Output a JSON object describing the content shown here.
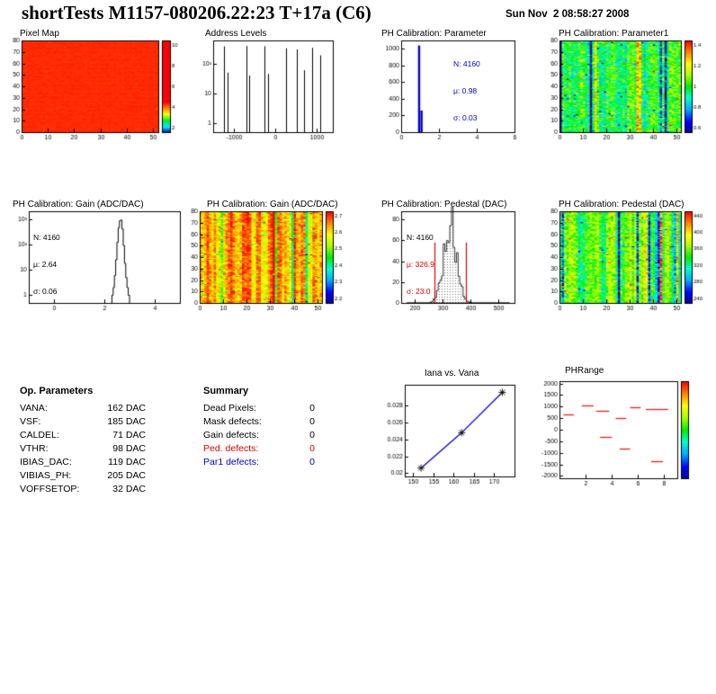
{
  "header": {
    "title": "shortTests M1157-080206.22:23 T+17a (C6)",
    "date": "Sun Nov  2 08:58:27 2008"
  },
  "op_parameters": {
    "title": "Op. Parameters",
    "rows": [
      {
        "label": "VANA:",
        "value": "162 DAC"
      },
      {
        "label": "VSF:",
        "value": "185 DAC"
      },
      {
        "label": "CALDEL:",
        "value": "71 DAC"
      },
      {
        "label": "VTHR:",
        "value": "98 DAC"
      },
      {
        "label": "IBIAS_DAC:",
        "value": "119 DAC"
      },
      {
        "label": "VIBIAS_PH:",
        "value": "205 DAC"
      },
      {
        "label": "VOFFSETOP:",
        "value": "32 DAC"
      }
    ]
  },
  "summary": {
    "title": "Summary",
    "rows": [
      {
        "label": "Dead Pixels:",
        "value": "0",
        "color": "#000000"
      },
      {
        "label": "Mask defects:",
        "value": "0",
        "color": "#000000"
      },
      {
        "label": "Gain defects:",
        "value": "0",
        "color": "#000000"
      },
      {
        "label": "Ped. defects:",
        "value": "0",
        "color": "#dd0000"
      },
      {
        "label": "Par1 defects:",
        "value": "0",
        "color": "#0000cc"
      }
    ]
  },
  "chart_data": [
    {
      "id": "pixel_map",
      "type": "heatmap",
      "title": "Pixel Map",
      "xlim": [
        0,
        52
      ],
      "ylim": [
        0,
        80
      ],
      "x_ticks": [
        0,
        10,
        20,
        30,
        40,
        50
      ],
      "y_ticks": [
        0,
        10,
        20,
        30,
        40,
        50,
        60,
        70,
        80
      ],
      "base": 0.96,
      "streak": 0,
      "noise": 0.02,
      "outlier": 0,
      "seed": 11,
      "colorbar": {
        "stops": [
          [
            0,
            "#0000bb"
          ],
          [
            0.06,
            "#00eaff"
          ],
          [
            0.13,
            "#00ee33"
          ],
          [
            0.2,
            "#ffff00"
          ],
          [
            0.27,
            "#ff7700"
          ],
          [
            0.33,
            "#ff0000"
          ],
          [
            1,
            "#ff0000"
          ]
        ],
        "labels": [
          "10",
          "8",
          "6",
          "4",
          "2"
        ]
      }
    },
    {
      "id": "address_levels",
      "type": "log_spikes",
      "title": "Address Levels",
      "xlim": [
        -1500,
        1400
      ],
      "x_ticks": [
        -1000,
        0,
        1000
      ],
      "ylog": [
        0.5,
        600
      ],
      "y_ticks": [
        {
          "label": "10²",
          "v": 100
        },
        {
          "label": "10",
          "v": 10
        },
        {
          "label": "1",
          "v": 1
        }
      ],
      "spikes": [
        [
          -1230,
          380
        ],
        [
          -1150,
          50
        ],
        [
          -700,
          390
        ],
        [
          -620,
          40
        ],
        [
          -250,
          385
        ],
        [
          -170,
          45
        ],
        [
          265,
          330
        ],
        [
          520,
          300
        ],
        [
          700,
          60
        ],
        [
          900,
          340
        ],
        [
          1100,
          190
        ]
      ]
    },
    {
      "id": "ph_parameter",
      "type": "spike_hist",
      "title": "PH Calibration: Parameter",
      "xlim": [
        0,
        6
      ],
      "x_ticks": [
        0,
        2,
        4,
        6
      ],
      "ylim": [
        0,
        1100
      ],
      "y_ticks": [
        0,
        200,
        400,
        600,
        800,
        1000
      ],
      "color": "#0000cc",
      "spikes": [
        [
          0.95,
          1040
        ],
        [
          1.08,
          260
        ]
      ],
      "stats": {
        "color": "#0000cc",
        "lines": [
          "N: 4160",
          "μ: 0.98",
          "σ: 0.03"
        ]
      }
    },
    {
      "id": "parameter1_map",
      "type": "heatmap",
      "title": "PH Calibration: Parameter1",
      "xlim": [
        0,
        52
      ],
      "ylim": [
        0,
        80
      ],
      "x_ticks": [
        0,
        10,
        20,
        30,
        40,
        50
      ],
      "y_ticks": [
        0,
        10,
        20,
        30,
        40,
        50,
        60,
        70,
        80
      ],
      "base": 0.48,
      "streak": 0.09,
      "noise": 0.3,
      "outlier": 0.07,
      "seed": 7,
      "colorbar": {
        "stops": "rainbow",
        "labels": [
          "1.4",
          "1.2",
          "1",
          "0.8",
          "0.6"
        ]
      }
    },
    {
      "id": "gain_hist",
      "type": "log_hist",
      "title": "PH Calibration: Gain (ADC/DAC)",
      "xlim": [
        -1,
        5
      ],
      "x_ticks": [
        0,
        2,
        4
      ],
      "ylog": [
        0.5,
        2000
      ],
      "y_ticks": [
        {
          "label": "10³",
          "v": 1000
        },
        {
          "label": "10²",
          "v": 100
        },
        {
          "label": "10",
          "v": 10
        },
        {
          "label": "1",
          "v": 1
        }
      ],
      "bins": {
        "x0": 2.3,
        "w": 0.05,
        "counts": [
          1,
          2,
          6,
          25,
          120,
          450,
          850,
          900,
          400,
          90,
          18,
          5,
          2,
          1
        ]
      },
      "stats": {
        "color": "#000000",
        "lines": [
          "N: 4160",
          "μ: 2.64",
          "σ: 0.06"
        ]
      }
    },
    {
      "id": "gain_map",
      "type": "heatmap",
      "title": "PH Calibration: Gain (ADC/DAC)",
      "xlim": [
        0,
        52
      ],
      "ylim": [
        0,
        80
      ],
      "x_ticks": [
        0,
        10,
        20,
        30,
        40,
        50
      ],
      "y_ticks": [
        0,
        10,
        20,
        30,
        40,
        50,
        60,
        70,
        80
      ],
      "base": 0.84,
      "streak": 0.13,
      "noise": 0.2,
      "outlier": 0.06,
      "seed": 21,
      "colorbar": {
        "stops": "rainbow",
        "labels": [
          "2.7",
          "2.6",
          "2.5",
          "2.4",
          "2.3",
          "2.2"
        ]
      }
    },
    {
      "id": "pedestal_hist",
      "type": "gauss_hist",
      "title": "PH Calibration: Pedestal (DAC)",
      "xlim": [
        150,
        560
      ],
      "x_ticks": [
        200,
        300,
        400,
        500
      ],
      "ylim": [
        0,
        88
      ],
      "y_ticks": [
        0,
        20,
        40,
        60,
        80
      ],
      "mu": 326.9,
      "sigma": 23.0,
      "peak": 76,
      "seed": 5,
      "red_lines": {
        "x": [
          270,
          385
        ],
        "h": 58,
        "color": "#dd0000"
      },
      "stats": {
        "lines": [
          "N: 4160",
          "μ: 326.9",
          "σ: 23.0"
        ],
        "colors": [
          "#000000",
          "#dd0000",
          "#dd0000"
        ]
      }
    },
    {
      "id": "pedestal_map",
      "type": "heatmap",
      "title": "PH Calibration: Pedestal (DAC)",
      "xlim": [
        0,
        52
      ],
      "ylim": [
        0,
        80
      ],
      "x_ticks": [
        0,
        10,
        20,
        30,
        40,
        50
      ],
      "y_ticks": [
        0,
        10,
        20,
        30,
        40,
        50,
        60,
        70,
        80
      ],
      "base": 0.52,
      "streak": 0.15,
      "noise": 0.27,
      "outlier": 0.06,
      "seed": 33,
      "colorbar": {
        "stops": "rainbow",
        "labels": [
          "440",
          "400",
          "360",
          "320",
          "280",
          "240"
        ]
      }
    },
    {
      "id": "iana_vana",
      "type": "line",
      "title": "Iana vs. Vana",
      "xlim": [
        148,
        175
      ],
      "x_ticks": [
        150,
        155,
        160,
        165,
        170
      ],
      "ylim": [
        0.0196,
        0.0305
      ],
      "y_ticks": [
        {
          "label": "0.028",
          "v": 0.028
        },
        {
          "label": "0.026",
          "v": 0.026
        },
        {
          "label": "0.024",
          "v": 0.024
        },
        {
          "label": "0.022",
          "v": 0.022
        },
        {
          "label": "0.02",
          "v": 0.02
        }
      ],
      "points": [
        [
          152,
          0.0206
        ],
        [
          162,
          0.0248
        ],
        [
          172,
          0.0296
        ]
      ],
      "line_color": "#0000cc",
      "marker_color": "#111111"
    },
    {
      "id": "phrange",
      "type": "segments",
      "title": "PHRange",
      "xlim": [
        0,
        9
      ],
      "x_ticks": [
        2,
        4,
        6,
        8
      ],
      "ylim": [
        -2100,
        2100
      ],
      "y_ticks": [
        {
          "label": "2000",
          "v": 2000
        },
        {
          "label": "1500",
          "v": 1500
        },
        {
          "label": "1000",
          "v": 1000
        },
        {
          "label": "500",
          "v": 500
        },
        {
          "label": "0",
          "v": 0
        },
        {
          "label": "-500",
          "v": -500
        },
        {
          "label": "-1000",
          "v": -1000
        },
        {
          "label": "-1500",
          "v": -1500
        },
        {
          "label": "-2000",
          "v": -2000
        }
      ],
      "color": "#dd2222",
      "segments": [
        [
          0.3,
          1.1,
          650
        ],
        [
          1.7,
          2.6,
          1050
        ],
        [
          2.8,
          3.8,
          820
        ],
        [
          3.1,
          4.0,
          -300
        ],
        [
          4.3,
          5.1,
          500
        ],
        [
          5.4,
          6.2,
          980
        ],
        [
          6.6,
          8.3,
          900
        ],
        [
          7.0,
          7.9,
          -1350
        ],
        [
          4.6,
          5.4,
          -800
        ]
      ],
      "colorbar": {
        "stops": "rainbow",
        "labels": []
      }
    }
  ]
}
